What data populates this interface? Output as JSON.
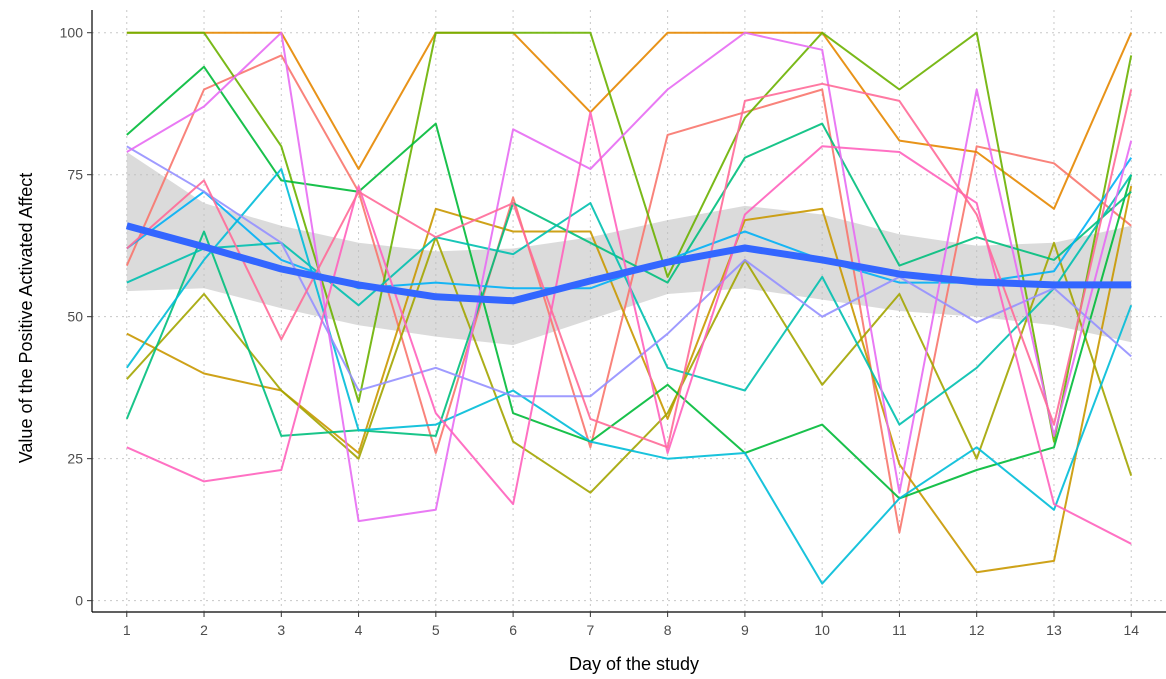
{
  "chart_data": {
    "type": "line",
    "xlabel": "Day of the study",
    "ylabel": "Value of the Positive Activated Affect",
    "xlim": [
      0.55,
      14.45
    ],
    "ylim": [
      -2,
      104
    ],
    "x_ticks": [
      1,
      2,
      3,
      4,
      5,
      6,
      7,
      8,
      9,
      10,
      11,
      12,
      13,
      14
    ],
    "y_ticks": [
      0,
      25,
      50,
      75,
      100
    ],
    "grid": true,
    "legend": "none",
    "x": [
      1,
      2,
      3,
      4,
      5,
      6,
      7,
      8,
      9,
      10,
      11,
      12,
      13,
      14
    ],
    "series": [
      {
        "color": "#F8766D",
        "values": [
          59,
          90,
          96,
          72,
          26,
          71,
          27,
          82,
          86,
          90,
          12,
          80,
          77,
          66
        ]
      },
      {
        "color": "#E58700",
        "values": [
          100,
          100,
          100,
          76,
          100,
          100,
          86,
          100,
          100,
          100,
          81,
          79,
          69,
          100
        ]
      },
      {
        "color": "#C99800",
        "values": [
          47,
          40,
          37,
          26,
          69,
          65,
          65,
          32,
          67,
          69,
          24,
          5,
          7,
          73
        ]
      },
      {
        "color": "#A3A500",
        "values": [
          39,
          54,
          37,
          25,
          64,
          28,
          19,
          33,
          60,
          38,
          54,
          25,
          63,
          22
        ]
      },
      {
        "color": "#6BB100",
        "values": [
          100,
          100,
          80,
          35,
          100,
          100,
          100,
          57,
          85,
          100,
          90,
          100,
          28,
          96
        ]
      },
      {
        "color": "#00BA38",
        "values": [
          82,
          94,
          74,
          72,
          84,
          33,
          28,
          38,
          26,
          31,
          18,
          23,
          27,
          75
        ]
      },
      {
        "color": "#00BF7D",
        "values": [
          32,
          65,
          29,
          30,
          29,
          70,
          63,
          56,
          78,
          84,
          59,
          64,
          60,
          72
        ]
      },
      {
        "color": "#00C0AF",
        "values": [
          56,
          62,
          63,
          52,
          64,
          61,
          70,
          41,
          37,
          57,
          31,
          41,
          55,
          75
        ]
      },
      {
        "color": "#00BCD8",
        "values": [
          41,
          60,
          76,
          30,
          31,
          37,
          28,
          25,
          26,
          3,
          18,
          27,
          16,
          52
        ]
      },
      {
        "color": "#00B0F6",
        "values": [
          62,
          72,
          60,
          55,
          56,
          55,
          55,
          60,
          65,
          60,
          56,
          56,
          58,
          78
        ]
      },
      {
        "color": "#9590FF",
        "values": [
          80,
          72,
          63,
          37,
          41,
          36,
          36,
          47,
          60,
          50,
          57,
          49,
          55,
          43
        ]
      },
      {
        "color": "#E76BF3",
        "values": [
          79,
          87,
          100,
          14,
          16,
          83,
          76,
          90,
          100,
          97,
          19,
          90,
          29,
          81
        ]
      },
      {
        "color": "#FF62BC",
        "values": [
          27,
          21,
          23,
          73,
          33,
          17,
          86,
          26,
          68,
          80,
          79,
          70,
          17,
          10
        ]
      },
      {
        "color": "#FF6A98",
        "values": [
          62,
          74,
          46,
          72,
          64,
          70,
          32,
          27,
          88,
          91,
          88,
          68,
          31,
          90
        ]
      }
    ],
    "trend": {
      "color": "#3366FF",
      "values": [
        66,
        62.3,
        58.4,
        55.6,
        53.5,
        52.8,
        56.3,
        59.6,
        62.1,
        60,
        57.5,
        56.1,
        55.6,
        55.6
      ]
    },
    "confidence_band": {
      "color": "#BEBEBE",
      "upper": [
        79,
        70,
        66,
        63,
        61.5,
        62,
        64,
        67,
        69.5,
        68,
        64.5,
        62.5,
        63,
        66
      ],
      "lower": [
        54.5,
        55,
        51.5,
        48.5,
        46.5,
        45,
        49.5,
        54,
        55,
        53,
        51,
        50,
        48.5,
        45.5
      ]
    }
  }
}
